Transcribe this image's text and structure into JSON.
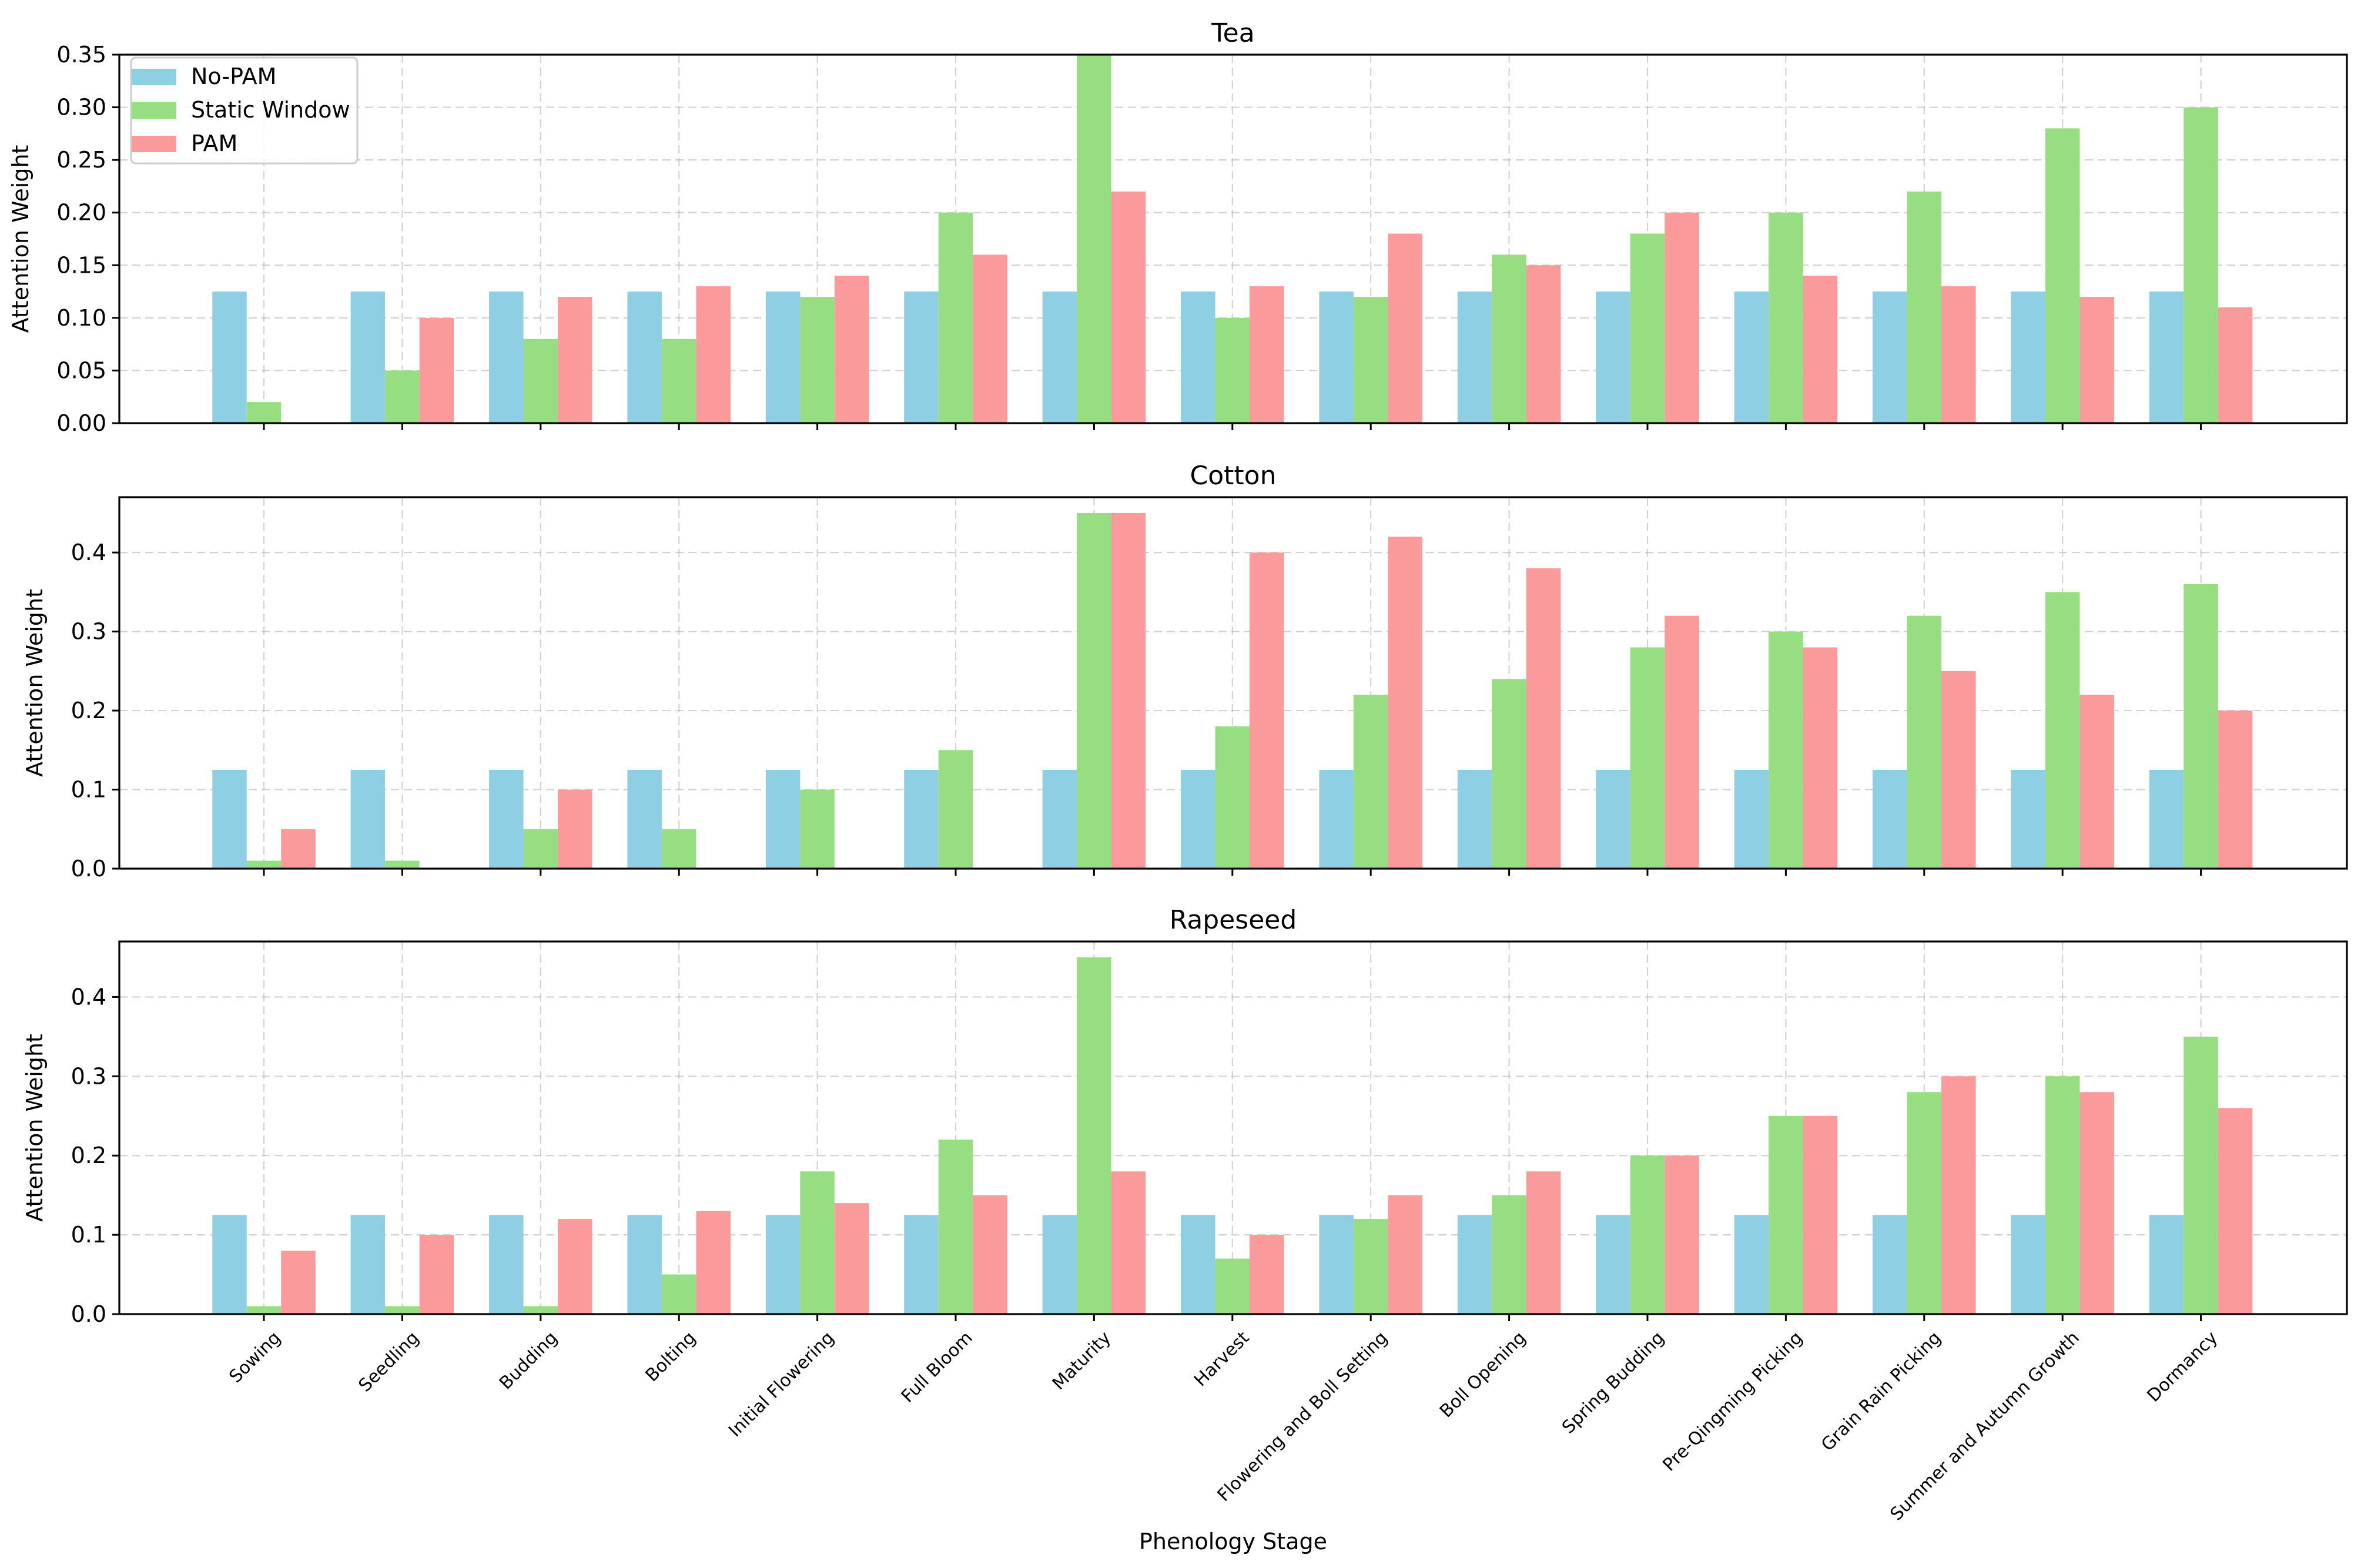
{
  "chart_data": [
    {
      "type": "bar",
      "title": "Tea",
      "xlabel": "",
      "ylabel": "Attention Weight",
      "ylim": [
        0,
        0.35
      ],
      "yticks": [
        "0.00",
        "0.05",
        "0.10",
        "0.15",
        "0.20",
        "0.25",
        "0.30",
        "0.35"
      ],
      "yticks_values": [
        0,
        0.05,
        0.1,
        0.15,
        0.2,
        0.25,
        0.3,
        0.35
      ],
      "grid": true,
      "legend": "top-left",
      "categories": [
        "Sowing",
        "Seedling",
        "Budding",
        "Bolting",
        "Initial Flowering",
        "Full Bloom",
        "Maturity",
        "Harvest",
        "Flowering and Boll Setting",
        "Boll Opening",
        "Spring Budding",
        "Pre-Qingming Picking",
        "Grain Rain Picking",
        "Summer and Autumn Growth",
        "Dormancy"
      ],
      "series": [
        {
          "name": "No-PAM",
          "color": "#8ecfe3",
          "values": [
            0.125,
            0.125,
            0.125,
            0.125,
            0.125,
            0.125,
            0.125,
            0.125,
            0.125,
            0.125,
            0.125,
            0.125,
            0.125,
            0.125,
            0.125
          ]
        },
        {
          "name": "Static Window",
          "color": "#97dd82",
          "values": [
            0.02,
            0.05,
            0.08,
            0.08,
            0.12,
            0.2,
            0.35,
            0.1,
            0.12,
            0.16,
            0.18,
            0.2,
            0.22,
            0.28,
            0.3
          ]
        },
        {
          "name": "PAM",
          "color": "#fb9a9a",
          "values": [
            0.0,
            0.1,
            0.12,
            0.13,
            0.14,
            0.16,
            0.22,
            0.13,
            0.18,
            0.15,
            0.2,
            0.14,
            0.13,
            0.12,
            0.11
          ]
        }
      ]
    },
    {
      "type": "bar",
      "title": "Cotton",
      "xlabel": "",
      "ylabel": "Attention Weight",
      "ylim": [
        0,
        0.47
      ],
      "yticks": [
        "0.0",
        "0.1",
        "0.2",
        "0.3",
        "0.4"
      ],
      "yticks_values": [
        0,
        0.1,
        0.2,
        0.3,
        0.4
      ],
      "grid": true,
      "categories": [
        "Sowing",
        "Seedling",
        "Budding",
        "Bolting",
        "Initial Flowering",
        "Full Bloom",
        "Maturity",
        "Harvest",
        "Flowering and Boll Setting",
        "Boll Opening",
        "Spring Budding",
        "Pre-Qingming Picking",
        "Grain Rain Picking",
        "Summer and Autumn Growth",
        "Dormancy"
      ],
      "series": [
        {
          "name": "No-PAM",
          "color": "#8ecfe3",
          "values": [
            0.125,
            0.125,
            0.125,
            0.125,
            0.125,
            0.125,
            0.125,
            0.125,
            0.125,
            0.125,
            0.125,
            0.125,
            0.125,
            0.125,
            0.125
          ]
        },
        {
          "name": "Static Window",
          "color": "#97dd82",
          "values": [
            0.01,
            0.01,
            0.05,
            0.05,
            0.1,
            0.15,
            0.45,
            0.18,
            0.22,
            0.24,
            0.28,
            0.3,
            0.32,
            0.35,
            0.36
          ]
        },
        {
          "name": "PAM",
          "color": "#fb9a9a",
          "values": [
            0.05,
            0.0,
            0.1,
            0.0,
            0.0,
            0.0,
            0.45,
            0.4,
            0.42,
            0.38,
            0.32,
            0.28,
            0.25,
            0.22,
            0.2
          ]
        }
      ]
    },
    {
      "type": "bar",
      "title": "Rapeseed",
      "xlabel": "Phenology Stage",
      "ylabel": "Attention Weight",
      "ylim": [
        0,
        0.47
      ],
      "yticks": [
        "0.0",
        "0.1",
        "0.2",
        "0.3",
        "0.4"
      ],
      "yticks_values": [
        0,
        0.1,
        0.2,
        0.3,
        0.4
      ],
      "grid": true,
      "categories": [
        "Sowing",
        "Seedling",
        "Budding",
        "Bolting",
        "Initial Flowering",
        "Full Bloom",
        "Maturity",
        "Harvest",
        "Flowering and Boll Setting",
        "Boll Opening",
        "Spring Budding",
        "Pre-Qingming Picking",
        "Grain Rain Picking",
        "Summer and Autumn Growth",
        "Dormancy"
      ],
      "series": [
        {
          "name": "No-PAM",
          "color": "#8ecfe3",
          "values": [
            0.125,
            0.125,
            0.125,
            0.125,
            0.125,
            0.125,
            0.125,
            0.125,
            0.125,
            0.125,
            0.125,
            0.125,
            0.125,
            0.125,
            0.125
          ]
        },
        {
          "name": "Static Window",
          "color": "#97dd82",
          "values": [
            0.01,
            0.01,
            0.01,
            0.05,
            0.18,
            0.22,
            0.45,
            0.07,
            0.12,
            0.15,
            0.2,
            0.25,
            0.28,
            0.3,
            0.35
          ]
        },
        {
          "name": "PAM",
          "color": "#fb9a9a",
          "values": [
            0.08,
            0.1,
            0.12,
            0.13,
            0.14,
            0.15,
            0.18,
            0.1,
            0.15,
            0.18,
            0.2,
            0.25,
            0.3,
            0.28,
            0.26
          ]
        }
      ]
    }
  ]
}
